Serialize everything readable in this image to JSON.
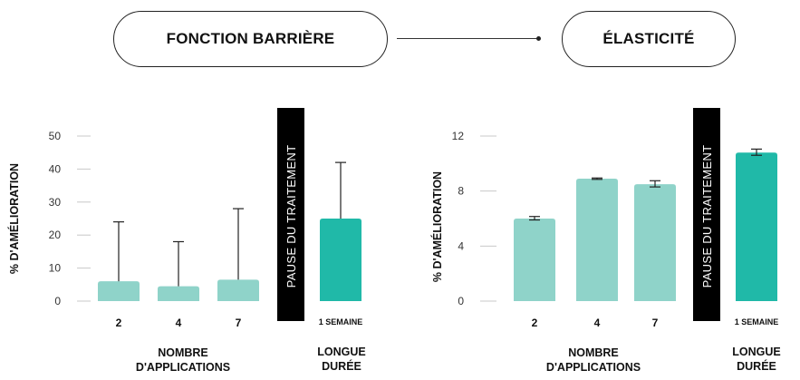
{
  "header": {
    "left_title": "FONCTION BARRIÈRE",
    "right_title": "ÉLASTICITÉ"
  },
  "colors": {
    "bar_light": "#8fd3c9",
    "bar_dark": "#20b9a8",
    "pause_band": "#000000"
  },
  "chart_data": [
    {
      "type": "bar",
      "title": "FONCTION BARRIÈRE",
      "ylabel": "% D'AMÉLIORATION",
      "ylim": [
        0,
        50
      ],
      "yticks": [
        "0",
        "10",
        "20",
        "30",
        "40",
        "50"
      ],
      "categories": [
        "2",
        "4",
        "7",
        "1 SEMAINE"
      ],
      "values": [
        6,
        4.5,
        6.5,
        25
      ],
      "error_upper": [
        24,
        18,
        28,
        42
      ],
      "group_label_1": "NOMBRE D'APPLICATIONS",
      "group_label_2": "LONGUE DURÉE",
      "pause_label": "PAUSE DU TRAITEMENT"
    },
    {
      "type": "bar",
      "title": "ÉLASTICITÉ",
      "ylabel": "% D'AMÉLIORATION",
      "ylim": [
        0,
        12
      ],
      "yticks": [
        "0",
        "4",
        "8",
        "12"
      ],
      "categories": [
        "2",
        "4",
        "7",
        "1 SEMAINE"
      ],
      "values": [
        6,
        8.9,
        8.5,
        10.8
      ],
      "error_low": [
        5.9,
        8.85,
        8.3,
        10.6
      ],
      "error_high": [
        6.15,
        8.95,
        8.75,
        11.05
      ],
      "group_label_1": "NOMBRE D'APPLICATIONS",
      "group_label_2": "LONGUE DURÉE",
      "pause_label": "PAUSE DU TRAITEMENT"
    }
  ]
}
